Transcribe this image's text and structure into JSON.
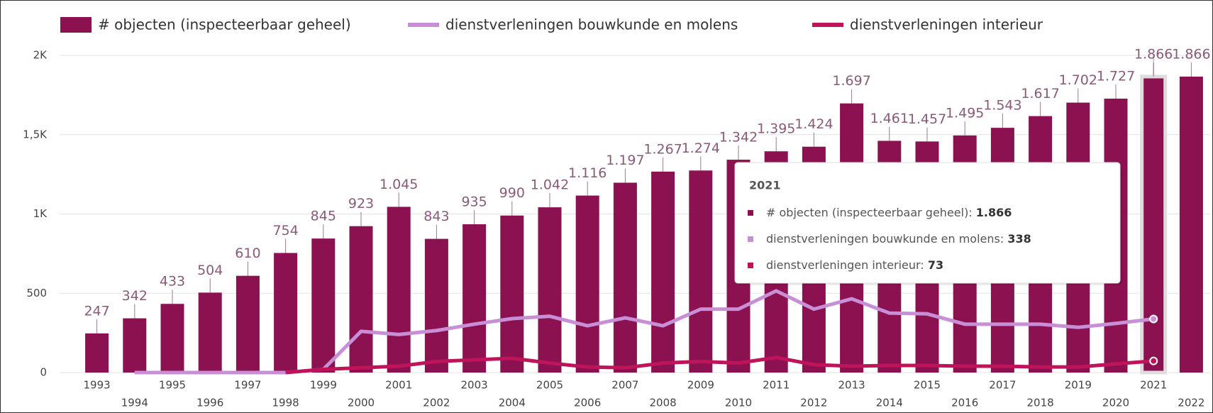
{
  "chart_data": {
    "type": "bar",
    "categories": [
      "1993",
      "1994",
      "1995",
      "1996",
      "1997",
      "1998",
      "1999",
      "2000",
      "2001",
      "2002",
      "2003",
      "2004",
      "2005",
      "2006",
      "2007",
      "2008",
      "2009",
      "2010",
      "2011",
      "2012",
      "2013",
      "2014",
      "2015",
      "2016",
      "2017",
      "2018",
      "2019",
      "2020",
      "2021",
      "2022"
    ],
    "series": [
      {
        "name": "# objecten (inspecteerbaar geheel)",
        "color": "#8b1150",
        "type": "bar",
        "values": [
          247,
          342,
          433,
          504,
          610,
          754,
          845,
          923,
          1045,
          843,
          935,
          990,
          1042,
          1116,
          1197,
          1267,
          1274,
          1342,
          1395,
          1424,
          1697,
          1461,
          1457,
          1495,
          1543,
          1617,
          1702,
          1727,
          1866,
          1866
        ],
        "value_labels": [
          "247",
          "342",
          "433",
          "504",
          "610",
          "754",
          "845",
          "923",
          "1.045",
          "843",
          "935",
          "990",
          "1.042",
          "1.116",
          "1.197",
          "1.267",
          "1.274",
          "1.342",
          "1.395",
          "1.424",
          "1.697",
          "1.461",
          "1.457",
          "1.495",
          "1.543",
          "1.617",
          "1.702",
          "1.727",
          "1.866",
          "1.866"
        ]
      },
      {
        "name": "dienstverleningen bouwkunde en molens",
        "color": "#c98fd6",
        "type": "line",
        "values": [
          null,
          0,
          0,
          0,
          0,
          0,
          20,
          260,
          240,
          265,
          305,
          340,
          355,
          295,
          345,
          295,
          400,
          400,
          515,
          400,
          465,
          375,
          370,
          305,
          305,
          305,
          285,
          310,
          338,
          null
        ]
      },
      {
        "name": "dienstverleningen interieur",
        "color": "#c0145a",
        "type": "line",
        "values": [
          null,
          null,
          null,
          null,
          null,
          0,
          20,
          30,
          40,
          70,
          80,
          90,
          60,
          35,
          30,
          60,
          70,
          60,
          95,
          50,
          40,
          45,
          45,
          40,
          40,
          35,
          35,
          55,
          73,
          null
        ]
      }
    ],
    "ylim": [
      0,
      2000
    ],
    "yticks": [
      0,
      500,
      {
        "value": 1000,
        "label": "1K"
      },
      {
        "value": 1500,
        "label": "1,5K"
      },
      {
        "value": 2000,
        "label": "2K"
      }
    ],
    "grid": true,
    "legend": "top-left"
  },
  "tooltip": {
    "title": "2021",
    "items": [
      {
        "label": "# objecten (inspecteerbaar geheel): ",
        "value": "1.866",
        "color": "#8b1150"
      },
      {
        "label": "dienstverleningen bouwkunde en molens: ",
        "value": "338",
        "color": "#c98fd6"
      },
      {
        "label": "dienstverleningen interieur: ",
        "value": "73",
        "color": "#c0145a"
      }
    ]
  }
}
